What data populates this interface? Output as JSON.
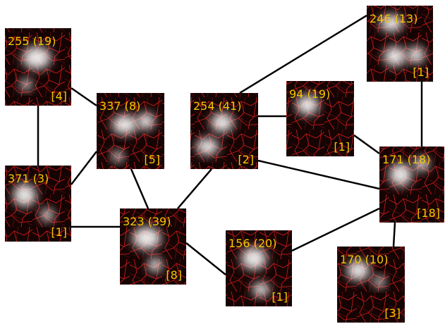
{
  "nodes": [
    {
      "label": "255 (19)",
      "count": "[4]"
    },
    {
      "label": "337 (8)",
      "count": "[5]"
    },
    {
      "label": "371 (3)",
      "count": "[1]"
    },
    {
      "label": "323 (39)",
      "count": "[8]"
    },
    {
      "label": "254 (41)",
      "count": "[2]"
    },
    {
      "label": "94 (19)",
      "count": "[1]"
    },
    {
      "label": "246 (13)",
      "count": "[1]"
    },
    {
      "label": "171 (18)",
      "count": "[18]"
    },
    {
      "label": "156 (20)",
      "count": "[1]"
    },
    {
      "label": "170 (10)",
      "count": "[3]"
    }
  ]
}
